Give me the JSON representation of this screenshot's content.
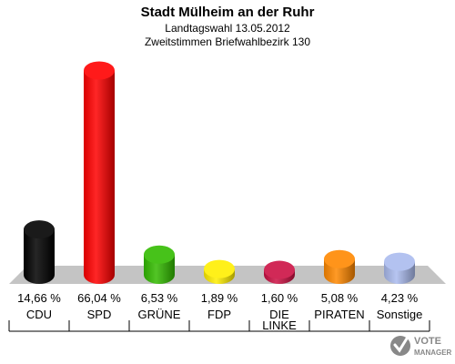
{
  "chart_data": {
    "type": "bar",
    "title": "Stadt Mülheim an der Ruhr",
    "subtitle_1": "Landtagswahl 13.05.2012",
    "subtitle_2": "Zweitstimmen Briefwahlbezirk 130",
    "categories": [
      "CDU",
      "SPD",
      "GRÜNE",
      "FDP",
      "DIE LINKE",
      "PIRATEN",
      "Sonstige"
    ],
    "category_lines": [
      [
        "CDU"
      ],
      [
        "SPD"
      ],
      [
        "GRÜNE"
      ],
      [
        "FDP"
      ],
      [
        "DIE",
        "LINKE"
      ],
      [
        "PIRATEN"
      ],
      [
        "Sonstige"
      ]
    ],
    "values": [
      14.66,
      66.04,
      6.53,
      1.89,
      1.6,
      5.08,
      4.23
    ],
    "value_labels": [
      "14,66 %",
      "66,04 %",
      "6,53 %",
      "1,89 %",
      "1,60 %",
      "5,08 %",
      "4,23 %"
    ],
    "colors": [
      "#000000",
      "#ff0000",
      "#33bb00",
      "#ffee00",
      "#cc1144",
      "#ff8800",
      "#aabbee"
    ],
    "ylim": [
      0,
      70
    ],
    "grid": false,
    "legend": "none"
  },
  "logo": {
    "line1": "VOTE",
    "line2": "MANAGER"
  }
}
